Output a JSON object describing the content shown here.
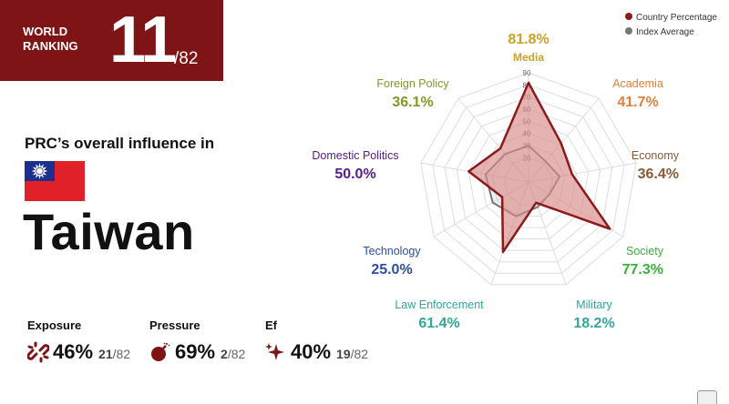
{
  "ranking": {
    "label_line1": "WORLD",
    "label_line2": "RANKING",
    "rank": "11",
    "total": "/82"
  },
  "title": "PRC’s overall influence in",
  "country": "Taiwan",
  "metrics": [
    {
      "label": "Exposure",
      "value": "46%",
      "rank": "21",
      "total": "/82",
      "icon": "broken-link-icon"
    },
    {
      "label": "Pressure",
      "value": "69%",
      "rank": "2",
      "total": "/82",
      "icon": "bomb-icon"
    },
    {
      "label": "Ef",
      "value": "40%",
      "rank": "19",
      "total": "/82",
      "icon": "sparkle-icon"
    }
  ],
  "colors": {
    "brand": "#7e1416",
    "country_series": "#8b1a1a",
    "country_fill": "#d98a8a",
    "index_series": "#777777"
  },
  "chart_data": {
    "type": "radar",
    "axes": [
      "Media",
      "Academia",
      "Economy",
      "Society",
      "Military",
      "Law Enforcement",
      "Technology",
      "Domestic Politics",
      "Foreign Policy"
    ],
    "value_labels": [
      "81.8%",
      "41.7%",
      "36.4%",
      "77.3%",
      "18.2%",
      "61.4%",
      "25.0%",
      "50.0%",
      "36.1%"
    ],
    "axis_colors": [
      "#c9a227",
      "#e0803a",
      "#8a5a36",
      "#3cae3c",
      "#2fa89a",
      "#2fa89a",
      "#2b4fa3",
      "#5b1a8c",
      "#7d9a2a"
    ],
    "ticks": [
      20,
      30,
      40,
      50,
      60,
      70,
      80,
      90
    ],
    "range": [
      0,
      90
    ],
    "series": [
      {
        "name": "Country Percentage",
        "values": [
          81.8,
          41.7,
          36.4,
          77.3,
          18.2,
          61.4,
          25.0,
          50.0,
          36.1
        ]
      },
      {
        "name": "Index Average",
        "values": [
          30,
          22,
          26,
          20,
          22,
          30,
          34,
          36,
          30
        ]
      }
    ],
    "legend_position": "top-right"
  }
}
